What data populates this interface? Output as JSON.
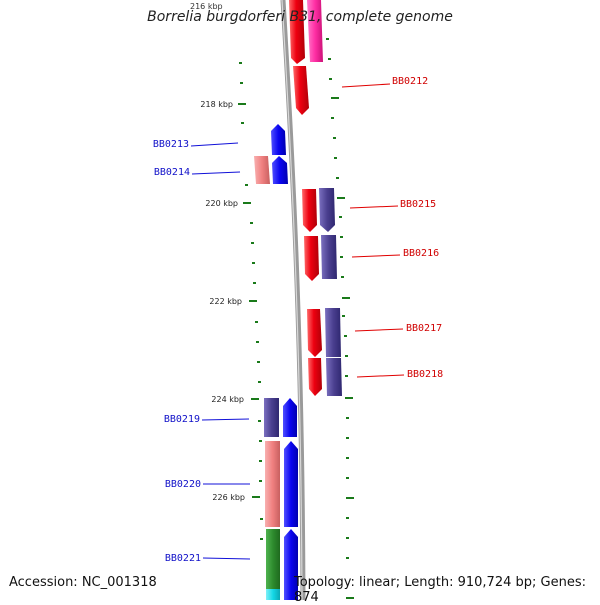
{
  "title": "Borrelia burgdorferi B31, complete genome",
  "accession": "Accession: NC_001318",
  "summary": "Topology: linear; Length: 910,724 bp; Genes: 874",
  "top_tick_label": "216 kbp",
  "ticks": [
    "218 kbp",
    "220 kbp",
    "222 kbp",
    "224 kbp",
    "226 kbp"
  ],
  "gene_labels_left": [
    "BB0213",
    "BB0214",
    "BB0219",
    "BB0220",
    "BB0221"
  ],
  "gene_labels_right": [
    "BB0212",
    "BB0215",
    "BB0216",
    "BB0217",
    "BB0218"
  ],
  "colors": {
    "red": "#e8000e",
    "magenta": "#ff1f9a",
    "navy": "#4a3f8c",
    "blue": "#0a05f0",
    "salmon": "#f08080",
    "green": "#2e8b2e",
    "cyan": "#14d8e6",
    "tick": "#1a7a1a",
    "backbone": "#8a8a8a"
  }
}
